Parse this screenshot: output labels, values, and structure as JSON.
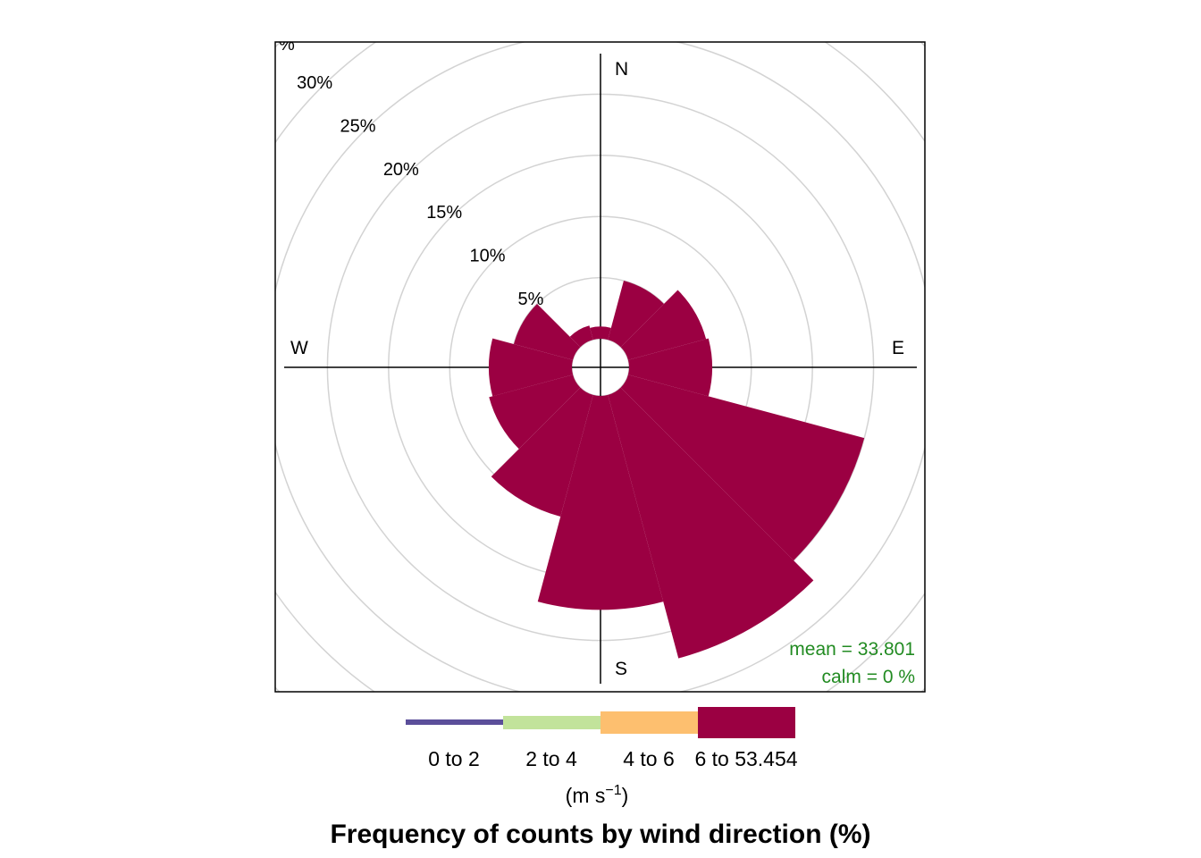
{
  "chart_data": {
    "type": "wind-rose",
    "title": "Frequency of counts by wind direction (%)",
    "directions": [
      0,
      30,
      60,
      90,
      120,
      150,
      180,
      210,
      240,
      270,
      300,
      330
    ],
    "series": [
      {
        "name": "0 to 2",
        "color": "#5b4e9a",
        "values": [
          0,
          0,
          0,
          0,
          0,
          0,
          0,
          0,
          0,
          0,
          0,
          0
        ]
      },
      {
        "name": "2 to 4",
        "color": "#c2e39b",
        "values": [
          0,
          0,
          0,
          0,
          0,
          0,
          0,
          0,
          0,
          0,
          0,
          0
        ]
      },
      {
        "name": "4 to 6",
        "color": "#fdbf6f",
        "values": [
          0,
          0,
          0,
          0,
          0,
          0,
          0,
          0,
          0,
          0,
          0,
          0
        ]
      },
      {
        "name": "6 to 53.454",
        "color": "#9b0042",
        "values": [
          1.0,
          5.0,
          6.6,
          6.8,
          20.0,
          22.3,
          17.5,
          10.3,
          7.1,
          6.8,
          5.0,
          1.2
        ]
      }
    ],
    "radial_ticks": [
      5,
      10,
      15,
      20,
      25,
      30
    ],
    "radial_tick_labels": [
      "5%",
      "10%",
      "15%",
      "20%",
      "25%",
      "30%"
    ],
    "corner_tick_label": "%",
    "radial_max": 35,
    "compass": {
      "n": "N",
      "e": "E",
      "s": "S",
      "w": "W"
    },
    "stats": {
      "mean_label": "mean",
      "eq": "=",
      "mean_value": "33.801",
      "calm_label": "calm",
      "calm_value": "0 %",
      "color": "#228b22"
    },
    "legend": {
      "labels": [
        "0 to 2",
        "2 to 4",
        "4 to 6",
        "6 to 53.454"
      ],
      "units_prefix": "(m s",
      "units_exp": "−1",
      "units_suffix": ")"
    },
    "grid": true
  }
}
